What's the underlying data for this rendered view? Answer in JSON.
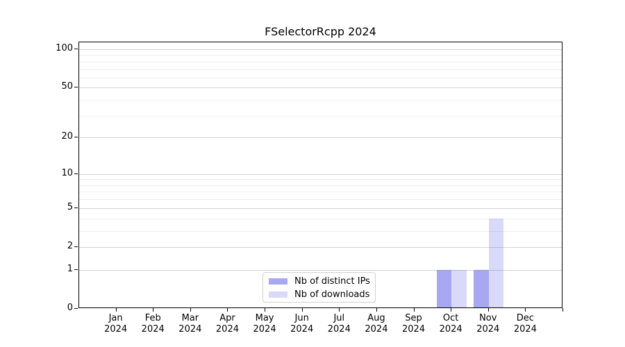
{
  "chart_data": {
    "type": "bar",
    "title": "FSelectorRcpp 2024",
    "categories": [
      "Jan 2024",
      "Feb 2024",
      "Mar 2024",
      "Apr 2024",
      "May 2024",
      "Jun 2024",
      "Jul 2024",
      "Aug 2024",
      "Sep 2024",
      "Oct 2024",
      "Nov 2024",
      "Dec 2024"
    ],
    "series": [
      {
        "name": "Nb of distinct IPs",
        "color": "rgba(80,80,230,0.5)",
        "values": [
          0,
          0,
          0,
          0,
          0,
          0,
          0,
          0,
          0,
          1,
          1,
          0
        ]
      },
      {
        "name": "Nb of downloads",
        "color": "rgba(80,80,230,0.22)",
        "values": [
          0,
          0,
          0,
          0,
          0,
          0,
          0,
          0,
          0,
          1,
          4,
          0
        ]
      }
    ],
    "yscale": "log1p",
    "ylim": [
      0,
      100
    ],
    "yticks": [
      0,
      1,
      2,
      5,
      10,
      20,
      50,
      100
    ],
    "minor_gridlines": [
      3,
      4,
      6,
      7,
      8,
      9,
      30,
      40,
      60,
      70,
      80,
      90
    ],
    "grid": true,
    "legend_position": "lower center",
    "colors": {
      "axis": "#000000",
      "major_grid": "#d2d2d2",
      "minor_grid": "#ededed",
      "bar_distinct_ips": "#a8a8f3",
      "bar_downloads": "#dcdcf9"
    }
  }
}
